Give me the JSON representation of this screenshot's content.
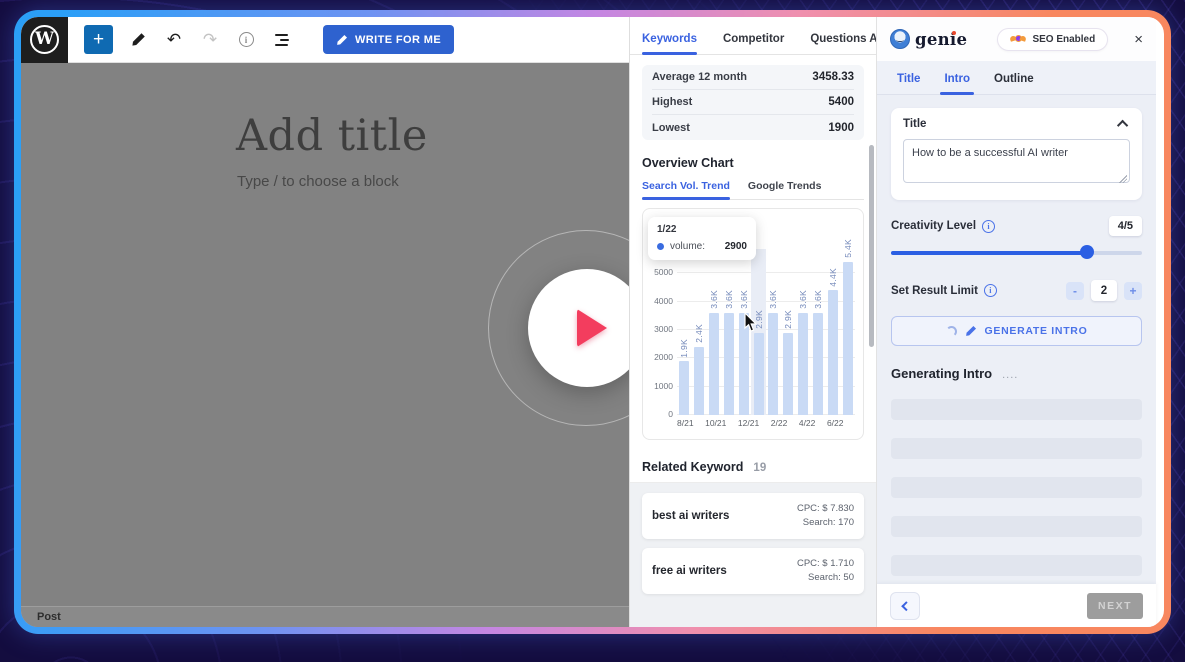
{
  "toolbar": {
    "add_label": "+",
    "write_for_me_label": "WRITE FOR ME"
  },
  "editor": {
    "title_placeholder": "Add title",
    "block_placeholder": "Type / to choose a block",
    "post_label": "Post"
  },
  "middle_panel": {
    "tabs": [
      {
        "label": "Keywords",
        "active": true
      },
      {
        "label": "Competitor",
        "active": false
      },
      {
        "label": "Questions Asked",
        "active": false
      }
    ],
    "stats": {
      "rows": [
        {
          "label": "Average 12 month",
          "value": "3458.33"
        },
        {
          "label": "Highest",
          "value": "5400"
        },
        {
          "label": "Lowest",
          "value": "1900"
        }
      ]
    },
    "overview_chart_title": "Overview Chart",
    "chart_tabs": [
      {
        "label": "Search Vol. Trend",
        "active": true
      },
      {
        "label": "Google Trends",
        "active": false
      }
    ],
    "tooltip": {
      "date": "1/22",
      "series_label": "volume:",
      "value": "2900"
    },
    "related_keywords": {
      "title": "Related Keyword",
      "count": "19",
      "items": [
        {
          "keyword": "best ai writers",
          "cpc": "CPC: $ 7.830",
          "search": "Search: 170"
        },
        {
          "keyword": "free ai writers",
          "cpc": "CPC: $ 1.710",
          "search": "Search: 50"
        }
      ]
    }
  },
  "chart_data": {
    "type": "bar",
    "title": "Search Vol. Trend",
    "x": [
      "8/21",
      "9/21",
      "10/21",
      "11/21",
      "12/21",
      "1/22",
      "2/22",
      "3/22",
      "4/22",
      "5/22",
      "6/22",
      "7/22"
    ],
    "values": [
      1900,
      2400,
      3600,
      3600,
      3600,
      2900,
      3600,
      2900,
      3600,
      3600,
      4400,
      5400
    ],
    "bar_labels": [
      "1.9K",
      "2.4K",
      "3.6K",
      "3.6K",
      "3.6K",
      "2.9K",
      "3.6K",
      "2.9K",
      "3.6K",
      "3.6K",
      "4.4K",
      "5.4K"
    ],
    "x_tick_labels": [
      "8/21",
      "10/21",
      "12/21",
      "2/22",
      "4/22",
      "6/22"
    ],
    "y_ticks": [
      0,
      1000,
      2000,
      3000,
      4000,
      5000
    ],
    "ylim": [
      0,
      5860
    ],
    "series_name": "volume",
    "highlight_index": 5,
    "grid": true,
    "bar_color": "#c9daf5",
    "label_color": "#7489ba"
  },
  "genie_panel": {
    "brand": "genie",
    "seo_badge_label": "SEO Enabled",
    "close_label": "×",
    "tabs": [
      {
        "label": "Title",
        "state": "done"
      },
      {
        "label": "Intro",
        "state": "active"
      },
      {
        "label": "Outline",
        "state": "default"
      }
    ],
    "title_card": {
      "label": "Title",
      "value": "How to be a successful AI writer"
    },
    "creativity": {
      "label": "Creativity Level",
      "value": "4/5",
      "percent": 78
    },
    "result_limit": {
      "label": "Set Result Limit",
      "value": "2",
      "minus_label": "-",
      "plus_label": "+"
    },
    "generate_button_label": "GENERATE INTRO",
    "generating": {
      "label": "Generating Intro",
      "dots": "...."
    },
    "footer": {
      "next_label": "NEXT"
    }
  }
}
